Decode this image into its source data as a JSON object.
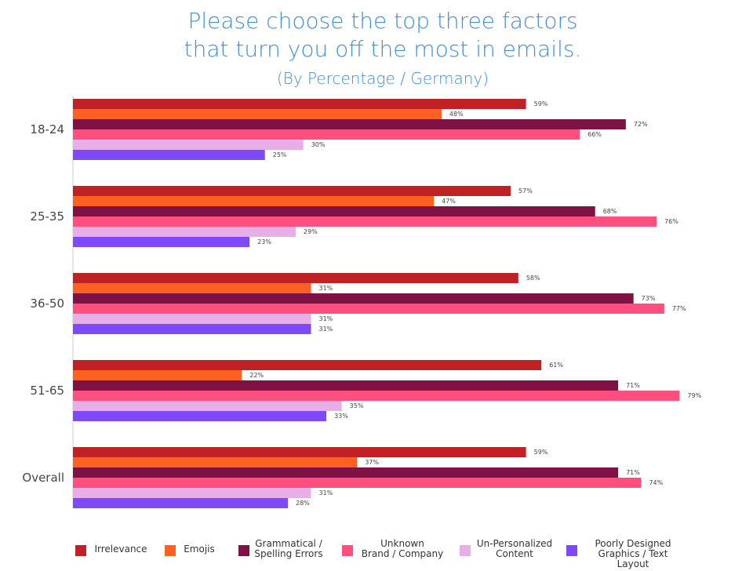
{
  "title_line1": "Please choose the top three factors",
  "title_line2": "that turn you off the most in emails.",
  "subtitle": "(By Percentage / Germany)",
  "chart_data": {
    "type": "bar",
    "orientation": "horizontal",
    "categories": [
      "18-24",
      "25-35",
      "36-50",
      "51-65",
      "Overall"
    ],
    "series": [
      {
        "name": "Irrelevance",
        "color": "#bf2125",
        "values": [
          59,
          57,
          58,
          61,
          59
        ]
      },
      {
        "name": "Emojis",
        "color": "#fd6122",
        "values": [
          48,
          47,
          31,
          22,
          37
        ]
      },
      {
        "name": "Grammatical / Spelling Errors",
        "color": "#7e1245",
        "values": [
          72,
          68,
          73,
          71,
          71
        ]
      },
      {
        "name": "Unknown Brand / Company",
        "color": "#fe4f7f",
        "values": [
          66,
          76,
          77,
          79,
          74
        ]
      },
      {
        "name": "Un-Personalized Content",
        "color": "#e7aee8",
        "values": [
          30,
          29,
          31,
          35,
          31
        ]
      },
      {
        "name": "Poorly Designed Graphics / Text Layout",
        "color": "#7e49f8",
        "values": [
          25,
          23,
          31,
          33,
          28
        ]
      }
    ],
    "value_suffix": "%",
    "grid": false,
    "legend_position": "bottom"
  },
  "legend": [
    {
      "label": "Irrelevance",
      "color": "#bf2125"
    },
    {
      "label": "Emojis",
      "color": "#fd6122"
    },
    {
      "label": "Grammatical /\nSpelling Errors",
      "color": "#7e1245"
    },
    {
      "label": "Unknown\nBrand / Company",
      "color": "#fe4f7f"
    },
    {
      "label": "Un-Personalized\nContent",
      "color": "#e7aee8"
    },
    {
      "label": "Poorly Designed\nGraphics / Text Layout",
      "color": "#7e49f8"
    }
  ]
}
